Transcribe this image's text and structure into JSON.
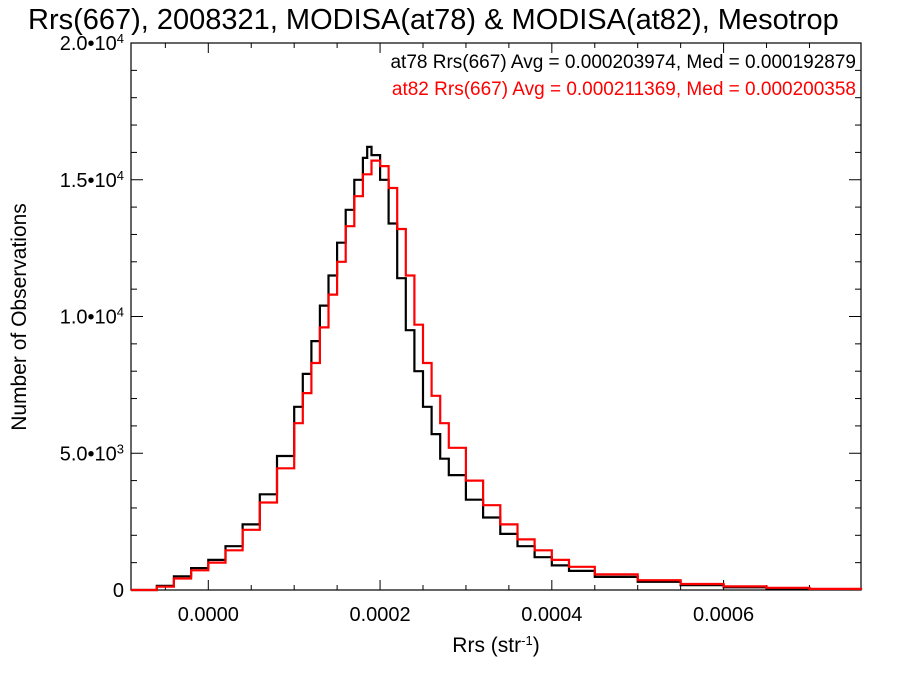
{
  "chart_data": {
    "type": "line",
    "title": "Rrs(667), 2008321, MODISA(at78) & MODISA(at82), Mesotrop",
    "xlabel": "Rrs (str",
    "xlabel_exponent": "-1",
    "xlabel_suffix": ")",
    "ylabel": "Number of Observations",
    "xlim": [
      -9e-05,
      0.00076
    ],
    "ylim": [
      0,
      20000
    ],
    "x_ticks": [
      {
        "value": 0.0,
        "label": "0.0000"
      },
      {
        "value": 0.0002,
        "label": "0.0002"
      },
      {
        "value": 0.0004,
        "label": "0.0004"
      },
      {
        "value": 0.0006,
        "label": "0.0006"
      }
    ],
    "y_ticks": [
      {
        "value": 0,
        "mant": "0",
        "exp": ""
      },
      {
        "value": 5000,
        "mant": "5.0•10",
        "exp": "3"
      },
      {
        "value": 10000,
        "mant": "1.0•10",
        "exp": "4"
      },
      {
        "value": 15000,
        "mant": "1.5•10",
        "exp": "4"
      },
      {
        "value": 20000,
        "mant": "2.0•10",
        "exp": "4"
      }
    ],
    "grid": false,
    "series": [
      {
        "name": "at78",
        "color": "#000000",
        "stats": "at78 Rrs(667) Avg = 0.000203974, Med = 0.000192879",
        "x": [
          -9e-05,
          -6e-05,
          -4e-05,
          -2e-05,
          0.0,
          2e-05,
          4e-05,
          6e-05,
          8e-05,
          0.0001,
          0.00011,
          0.00012,
          0.00013,
          0.00014,
          0.00015,
          0.00016,
          0.00017,
          0.00018,
          0.000185,
          0.00019,
          0.0002,
          0.00021,
          0.00022,
          0.00023,
          0.00024,
          0.00025,
          0.00026,
          0.00027,
          0.00028,
          0.0003,
          0.00032,
          0.00034,
          0.00036,
          0.00038,
          0.0004,
          0.00042,
          0.00045,
          0.0005,
          0.00055,
          0.0006,
          0.00065,
          0.0007,
          0.00076
        ],
        "y": [
          0,
          150,
          500,
          800,
          1100,
          1600,
          2400,
          3500,
          4900,
          6700,
          7900,
          9100,
          10400,
          11500,
          12700,
          13900,
          15000,
          15800,
          16200,
          15900,
          15000,
          13400,
          11400,
          9500,
          8000,
          6700,
          5700,
          4800,
          4200,
          3300,
          2650,
          2050,
          1600,
          1200,
          900,
          700,
          480,
          300,
          180,
          100,
          60,
          30,
          10
        ]
      },
      {
        "name": "at82",
        "color": "#ff0000",
        "stats": "at82 Rrs(667) Avg = 0.000211369, Med = 0.000200358",
        "x": [
          -9e-05,
          -6e-05,
          -4e-05,
          -2e-05,
          0.0,
          2e-05,
          4e-05,
          6e-05,
          8e-05,
          0.0001,
          0.00011,
          0.00012,
          0.00013,
          0.00014,
          0.00015,
          0.00016,
          0.00017,
          0.00018,
          0.00019,
          0.0002,
          0.00021,
          0.00022,
          0.00023,
          0.00024,
          0.00025,
          0.00026,
          0.00027,
          0.00028,
          0.0003,
          0.00032,
          0.00034,
          0.00036,
          0.00038,
          0.0004,
          0.00042,
          0.00045,
          0.0005,
          0.00055,
          0.0006,
          0.00065,
          0.0007,
          0.00076
        ],
        "y": [
          0,
          120,
          420,
          720,
          1000,
          1450,
          2200,
          3200,
          4450,
          6100,
          7200,
          8300,
          9600,
          10800,
          12000,
          13300,
          14400,
          15200,
          15700,
          15500,
          14700,
          13200,
          11500,
          9700,
          8300,
          7100,
          6100,
          5200,
          4000,
          3100,
          2400,
          1850,
          1450,
          1100,
          850,
          570,
          360,
          220,
          130,
          80,
          40,
          15
        ]
      }
    ]
  }
}
